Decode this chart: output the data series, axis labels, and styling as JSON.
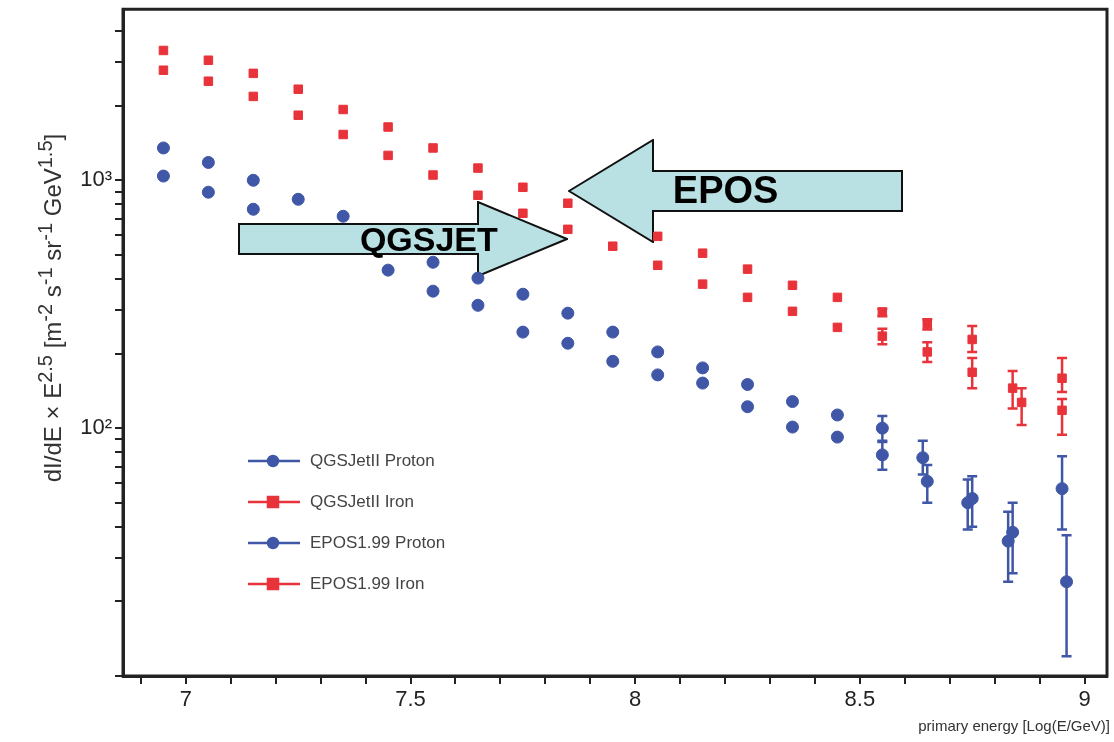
{
  "chart_data": {
    "type": "scatter",
    "xlabel": "primary energy [Log(E/GeV)]",
    "ylabel": "dI/dE × E$^{2.5}$ [m$^{-2}$ s$^{-1}$ sr$^{-1}$ GeV$^{1.5}$]",
    "log": "y",
    "legend": "bottom left",
    "tick_labels": "xy",
    "xlim": [
      6.86,
      9.05
    ],
    "ylim": [
      10,
      4900
    ],
    "xticks": [
      {
        "value": 6.9,
        "label": null
      },
      7,
      {
        "value": 7.1,
        "label": null
      },
      {
        "value": 7.2,
        "label": null
      },
      {
        "value": 7.3,
        "label": null
      },
      {
        "value": 7.4,
        "label": null
      },
      7.5,
      {
        "value": 7.6,
        "label": null
      },
      {
        "value": 7.7,
        "label": null
      },
      {
        "value": 7.8,
        "label": null
      },
      {
        "value": 7.9,
        "label": null
      },
      8,
      {
        "value": 8.1,
        "label": null
      },
      {
        "value": 8.2,
        "label": null
      },
      {
        "value": 8.3,
        "label": null
      },
      {
        "value": 8.4,
        "label": null
      },
      8.5,
      {
        "value": 8.6,
        "label": null
      },
      {
        "value": 8.7,
        "label": null
      },
      {
        "value": 8.8,
        "label": null
      },
      {
        "value": 8.9,
        "label": null
      },
      9
    ],
    "yticks": [
      {
        "value": 10,
        "label": null
      },
      {
        "value": 20,
        "label": null
      },
      {
        "value": 30,
        "label": null
      },
      {
        "value": 40,
        "label": null
      },
      {
        "value": 50,
        "label": null
      },
      {
        "value": 60,
        "label": null
      },
      {
        "value": 70,
        "label": null
      },
      {
        "value": 80,
        "label": null
      },
      {
        "value": 90,
        "label": null
      },
      {
        "value": 100,
        "label": "10²"
      },
      {
        "value": 200,
        "label": null
      },
      {
        "value": 300,
        "label": null
      },
      {
        "value": 400,
        "label": null
      },
      {
        "value": 500,
        "label": null
      },
      {
        "value": 600,
        "label": null
      },
      {
        "value": 700,
        "label": null
      },
      {
        "value": 800,
        "label": null
      },
      {
        "value": 900,
        "label": null
      },
      {
        "value": 1000,
        "label": "10³"
      },
      {
        "value": 2000,
        "label": null
      },
      {
        "value": 3000,
        "label": null
      },
      {
        "value": 4000,
        "label": null
      }
    ],
    "annotations": [
      {
        "text": "QGSJET",
        "x": 7.85,
        "y": 634
      },
      {
        "text": "EPOS",
        "x": 7.85,
        "y": 808
      }
    ],
    "series": [
      {
        "name": "QGSJetII Proton",
        "marker": "circle",
        "color": "#3f57a6",
        "x": [
          6.95,
          7.05,
          7.15,
          7.25,
          7.35,
          7.45,
          7.55,
          7.65,
          7.75,
          7.85,
          7.95,
          8.05,
          8.15,
          8.25,
          8.35,
          8.45,
          8.55,
          8.65,
          8.75,
          8.83,
          8.96
        ],
        "values": [
          1040,
          895,
          764,
          null,
          null,
          434,
          357,
          313,
          244,
          220,
          186,
          164,
          152,
          122,
          101,
          92,
          78,
          61,
          52,
          35,
          24
        ],
        "errors": [
          null,
          null,
          null,
          null,
          null,
          null,
          null,
          null,
          null,
          null,
          null,
          null,
          null,
          null,
          null,
          null,
          [
            68,
            89
          ],
          [
            50,
            71
          ],
          [
            40,
            64
          ],
          [
            24,
            46
          ],
          [
            12,
            37
          ]
        ]
      },
      {
        "name": "QGSJetII Iron",
        "marker": "square",
        "color": "#e8333a",
        "x": [
          6.95,
          7.05,
          7.15,
          7.25,
          7.35,
          7.45,
          7.55,
          7.65,
          7.75,
          7.85,
          7.95,
          8.05,
          8.15,
          8.25,
          8.35,
          8.45,
          8.55,
          8.65,
          8.75,
          8.84,
          8.95
        ],
        "values": [
          2780,
          2510,
          2180,
          1830,
          1530,
          1260,
          1050,
          870,
          736,
          634,
          542,
          454,
          381,
          337,
          296,
          255,
          235,
          203,
          168,
          145,
          118
        ],
        "errors": [
          null,
          null,
          null,
          null,
          null,
          null,
          null,
          null,
          null,
          null,
          null,
          null,
          null,
          null,
          null,
          null,
          [
            218,
            252
          ],
          [
            185,
            222
          ],
          [
            145,
            192
          ],
          [
            120,
            170
          ],
          [
            94,
            131
          ]
        ]
      },
      {
        "name": "EPOS1.99 Proton",
        "marker": "circle",
        "color": "#3f57a6",
        "x": [
          6.95,
          7.05,
          7.15,
          7.25,
          7.35,
          7.45,
          7.55,
          7.65,
          7.75,
          7.85,
          7.95,
          8.05,
          8.15,
          8.25,
          8.35,
          8.45,
          8.55,
          8.64,
          8.74,
          8.84,
          8.95
        ],
        "values": [
          1350,
          1180,
          1000,
          838,
          716,
          null,
          467,
          403,
          347,
          291,
          244,
          203,
          175,
          150,
          128,
          113,
          100,
          76,
          50,
          38,
          57
        ],
        "errors": [
          null,
          null,
          null,
          null,
          null,
          null,
          null,
          null,
          null,
          null,
          null,
          null,
          null,
          null,
          null,
          null,
          [
            88,
            112
          ],
          [
            65,
            89
          ],
          [
            39,
            62
          ],
          [
            26,
            50
          ],
          [
            39,
            77
          ]
        ]
      },
      {
        "name": "EPOS1.99 Iron",
        "marker": "square",
        "color": "#e8333a",
        "x": [
          6.95,
          7.05,
          7.15,
          7.25,
          7.35,
          7.45,
          7.55,
          7.65,
          7.75,
          7.85,
          7.95,
          8.05,
          8.15,
          8.25,
          8.35,
          8.45,
          8.55,
          8.65,
          8.75,
          8.86,
          8.95
        ],
        "values": [
          3340,
          3050,
          2700,
          2330,
          1930,
          1640,
          1350,
          1120,
          937,
          808,
          null,
          594,
          508,
          438,
          377,
          337,
          294,
          263,
          228,
          127,
          159
        ],
        "errors": [
          null,
          null,
          null,
          null,
          null,
          null,
          null,
          null,
          null,
          null,
          null,
          null,
          null,
          null,
          null,
          null,
          [
            283,
            303
          ],
          [
            250,
            275
          ],
          [
            203,
            258
          ],
          [
            103,
            145
          ],
          [
            140,
            192
          ]
        ]
      }
    ]
  }
}
